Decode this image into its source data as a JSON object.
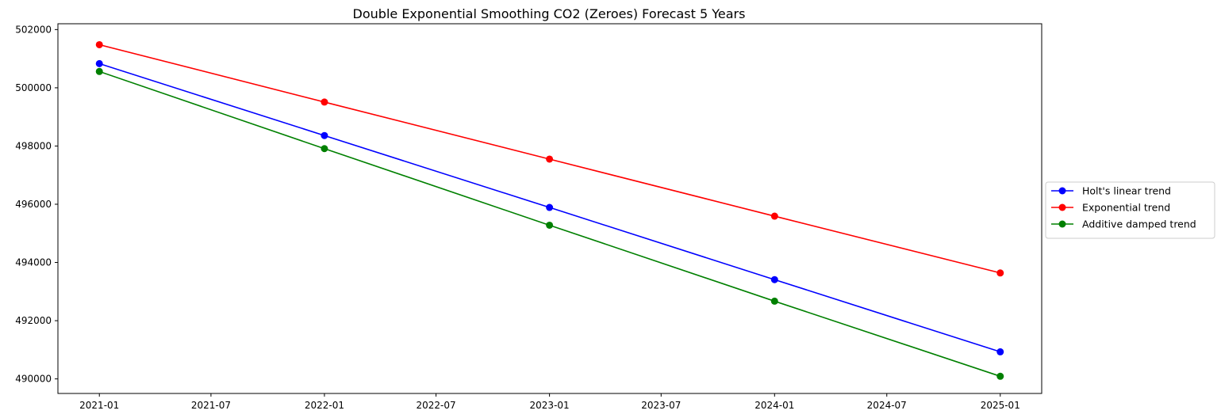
{
  "chart_data": {
    "type": "line",
    "title": "Double Exponential Smoothing CO2 (Zeroes) Forecast 5 Years",
    "xlabel": "",
    "ylabel": "",
    "x": [
      "2021-01-01",
      "2022-01-01",
      "2023-01-01",
      "2024-01-01",
      "2025-01-01"
    ],
    "x_ticks": [
      "2021-01",
      "2021-07",
      "2022-01",
      "2022-07",
      "2023-01",
      "2023-07",
      "2024-01",
      "2024-07",
      "2025-01"
    ],
    "y_ticks": [
      490000,
      492000,
      494000,
      496000,
      498000,
      500000,
      502000
    ],
    "ylim": [
      489500,
      502200
    ],
    "grid": false,
    "legend_position": "right",
    "series": [
      {
        "name": "Holt's linear trend",
        "color": "#0000ff",
        "values": [
          500830,
          498360,
          495890,
          493410,
          490930
        ]
      },
      {
        "name": "Exponential trend",
        "color": "#ff0000",
        "values": [
          501480,
          499510,
          497550,
          495590,
          493640
        ]
      },
      {
        "name": "Additive damped trend",
        "color": "#008000",
        "values": [
          500560,
          497910,
          495280,
          492670,
          490090
        ]
      }
    ]
  }
}
